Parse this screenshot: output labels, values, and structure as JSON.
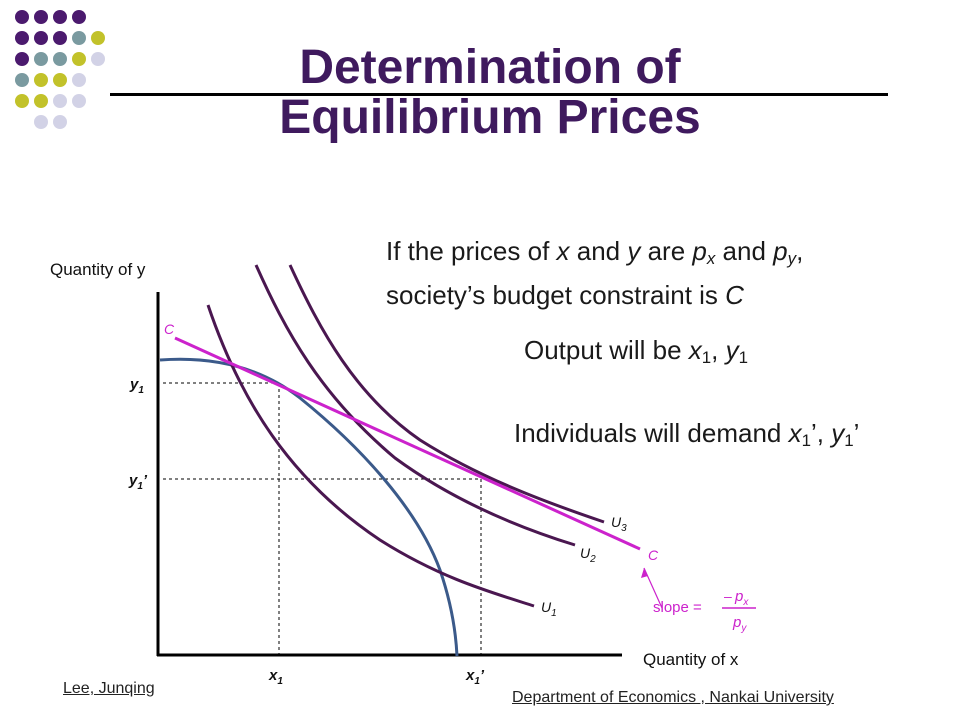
{
  "title": {
    "line1": "Determination of",
    "line2": "Equilibrium Prices"
  },
  "colors": {
    "title": "#3f1a5e",
    "indifference_curves": "#4a1750",
    "budget_line": "#cc22cc",
    "production_frontier": "#3b5a8a",
    "dot_dark_purple": "#4b1a6e",
    "dot_teal": "#7a9aa0",
    "dot_yellow": "#c2c22a",
    "dot_lavender": "#d2d2e6"
  },
  "intro": {
    "p1": "If the prices of ",
    "x": "x",
    "p2": " and ",
    "y": "y",
    "p3": " are ",
    "px_base": "p",
    "px_sub": "x",
    "p4": " and ",
    "py_base": "p",
    "py_sub": "y",
    "p5": ",",
    "line2_a": "society’s budget constraint is ",
    "line2_c": "C"
  },
  "output": {
    "p1": "Output will be ",
    "x": "x",
    "xsub": "1",
    "sep": ", ",
    "y": "y",
    "ysub": "1"
  },
  "demand": {
    "p1": "Individuals will demand ",
    "x": "x",
    "xsub": "1",
    "xprime": "’",
    "sep": ", ",
    "y": "y",
    "ysub": "1",
    "yprime": "’"
  },
  "axes": {
    "ylabel": "Quantity of y",
    "xlabel": "Quantity of x"
  },
  "labels": {
    "C": "C",
    "U": "U",
    "s1": "1",
    "s2": "2",
    "s3": "3",
    "x": "x",
    "y": "y",
    "prime": "’"
  },
  "slope": {
    "word": "slope =",
    "minus": "–",
    "p": "p",
    "sx": "x",
    "sy": "y"
  },
  "footer": {
    "author": "Lee, Junqing",
    "dept": "Department of  Economics , Nankai University"
  }
}
